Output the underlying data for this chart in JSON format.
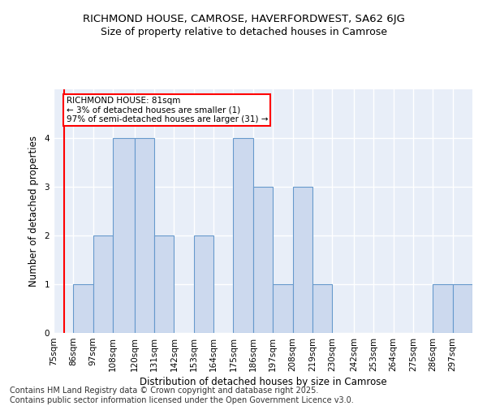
{
  "title_line1": "RICHMOND HOUSE, CAMROSE, HAVERFORDWEST, SA62 6JG",
  "title_line2": "Size of property relative to detached houses in Camrose",
  "xlabel": "Distribution of detached houses by size in Camrose",
  "ylabel": "Number of detached properties",
  "footer": "Contains HM Land Registry data © Crown copyright and database right 2025.\nContains public sector information licensed under the Open Government Licence v3.0.",
  "bins": [
    75,
    86,
    97,
    108,
    120,
    131,
    142,
    153,
    164,
    175,
    186,
    197,
    208,
    219,
    230,
    242,
    253,
    264,
    275,
    286,
    297
  ],
  "bin_labels": [
    "75sqm",
    "86sqm",
    "97sqm",
    "108sqm",
    "120sqm",
    "131sqm",
    "142sqm",
    "153sqm",
    "164sqm",
    "175sqm",
    "186sqm",
    "197sqm",
    "208sqm",
    "219sqm",
    "230sqm",
    "242sqm",
    "253sqm",
    "264sqm",
    "275sqm",
    "286sqm",
    "297sqm"
  ],
  "values": [
    0,
    1,
    2,
    4,
    4,
    2,
    0,
    2,
    0,
    4,
    3,
    1,
    3,
    1,
    0,
    0,
    0,
    0,
    0,
    1,
    1
  ],
  "bar_color": "#ccd9ee",
  "bar_edge_color": "#6699cc",
  "red_line_x": 81,
  "annotation_text": "RICHMOND HOUSE: 81sqm\n← 3% of detached houses are smaller (1)\n97% of semi-detached houses are larger (31) →",
  "annotation_box_color": "white",
  "annotation_box_edge_color": "red",
  "ylim": [
    0,
    5
  ],
  "yticks": [
    0,
    1,
    2,
    3,
    4
  ],
  "background_color": "#e8eef8",
  "grid_color": "white",
  "title_fontsize": 9.5,
  "subtitle_fontsize": 9,
  "label_fontsize": 8.5,
  "tick_fontsize": 7.5,
  "footer_fontsize": 7,
  "ann_fontsize": 7.5
}
